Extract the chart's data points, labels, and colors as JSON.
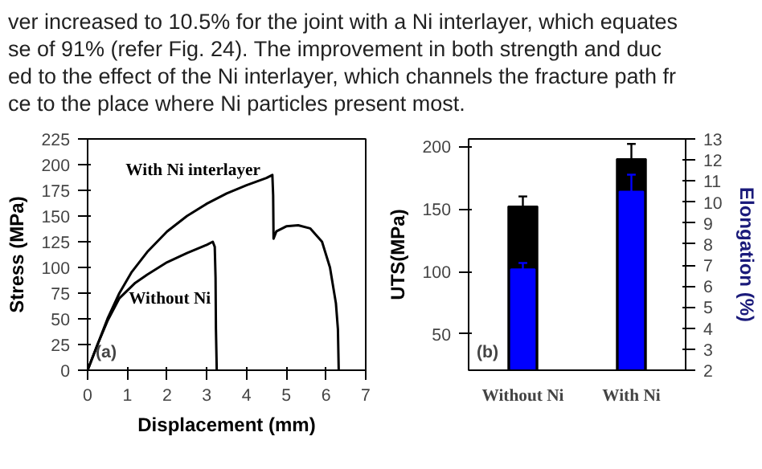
{
  "chart_data": [
    {
      "type": "line",
      "xlabel": "Displacement (mm)",
      "ylabel": "Stress (MPa)",
      "xlim": [
        0,
        7
      ],
      "ylim": [
        0,
        225
      ],
      "xticks": [
        0,
        1,
        2,
        3,
        4,
        5,
        6,
        7
      ],
      "yticks": [
        0,
        25,
        50,
        75,
        100,
        125,
        150,
        175,
        200,
        225
      ],
      "grid": false,
      "legend": "top left",
      "series": [
        {
          "name": "With Ni interlayer",
          "color": "#000000",
          "x": [
            0,
            0.25,
            0.5,
            0.8,
            1.1,
            1.5,
            2,
            2.5,
            3,
            3.5,
            4,
            4.5,
            4.65,
            4.67,
            4.68,
            4.75,
            5,
            5.3,
            5.6,
            5.9,
            6.1,
            6.25,
            6.3,
            6.32
          ],
          "values": [
            0,
            25,
            50,
            75,
            95,
            115,
            135,
            150,
            162,
            172,
            180,
            187,
            190,
            170,
            128,
            135,
            140,
            141,
            138,
            125,
            100,
            65,
            40,
            0
          ]
        },
        {
          "name": "Without Ni",
          "color": "#000000",
          "x": [
            0,
            0.25,
            0.5,
            0.8,
            1.2,
            1.5,
            2,
            2.5,
            3,
            3.15,
            3.2,
            3.22,
            3.23,
            3.25
          ],
          "values": [
            0,
            25,
            48,
            70,
            85,
            93,
            105,
            114,
            122,
            125,
            120,
            90,
            40,
            0
          ]
        }
      ],
      "annotations": [
        "ver increased to 10.5% for the joint with a Ni interlayer, which equates",
        "se of 91% (refer Fig. 24). The improvement in both strength and duc",
        "ed to the effect of the Ni interlayer, which channels the fracture path fr",
        "ce to the place where Ni particles present most.",
        "(a)"
      ]
    },
    {
      "type": "bar",
      "categories": [
        "Without Ni",
        "With Ni"
      ],
      "ylabel": "UTS(MPa)",
      "y2label": "Elongation (%)",
      "ylim": [
        21,
        206
      ],
      "yticks": [
        50,
        100,
        150,
        200
      ],
      "y2lim": [
        2,
        13
      ],
      "y2ticks": [
        2,
        3,
        4,
        5,
        6,
        7,
        8,
        9,
        10,
        11,
        12,
        13
      ],
      "grid": false,
      "legend": false,
      "series": [
        {
          "color": "#000000",
          "values": [
            152,
            190
          ],
          "errors": [
            8,
            12
          ]
        },
        {
          "color": "#0000ff",
          "axis": "y2",
          "values": [
            6.8,
            10.5
          ],
          "errors": [
            0.3,
            0.8
          ]
        }
      ],
      "annotations": [
        "(b)"
      ]
    }
  ]
}
